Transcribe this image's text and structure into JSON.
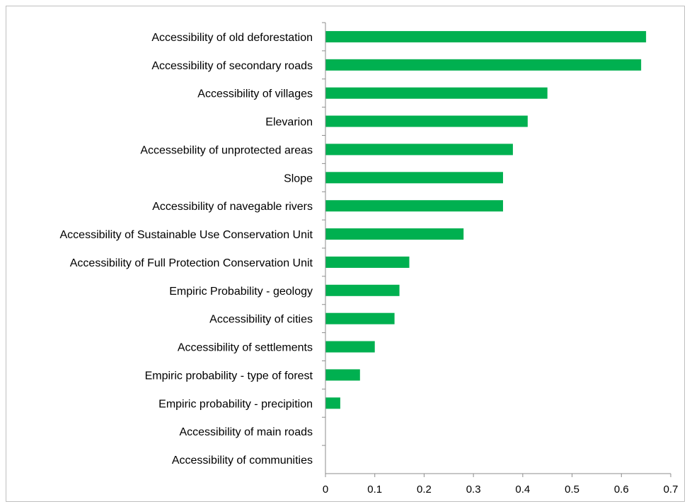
{
  "chart_data": {
    "type": "bar",
    "orientation": "horizontal",
    "title": "",
    "xlabel": "",
    "ylabel": "",
    "xlim": [
      0,
      0.7
    ],
    "ticks": [
      "0",
      "0.1",
      "0.2",
      "0.3",
      "0.4",
      "0.5",
      "0.6",
      "0.7"
    ],
    "tick_values": [
      0,
      0.1,
      0.2,
      0.3,
      0.4,
      0.5,
      0.6,
      0.7
    ],
    "grid": false,
    "legend": "none",
    "bar_color": "#00b050",
    "categories": [
      "Accessibility of old deforestation",
      "Accessibility of secondary roads",
      "Accessibility of villages",
      "Elevarion",
      "Accessebility of unprotected areas",
      "Slope",
      "Accessibility of navegable rivers",
      "Accessibility of Sustainable Use Conservation  Unit",
      "Accessibility of Full Protection Conservation Unit",
      "Empiric Probability - geology",
      "Accessibility of cities",
      "Accessibility of settlements",
      "Empiric probability - type of forest",
      "Empiric probability - precipition",
      "Accessibility of main roads",
      "Accessibility of communities"
    ],
    "values": [
      0.65,
      0.64,
      0.45,
      0.41,
      0.38,
      0.36,
      0.36,
      0.28,
      0.17,
      0.15,
      0.14,
      0.1,
      0.07,
      0.03,
      0,
      0
    ]
  }
}
